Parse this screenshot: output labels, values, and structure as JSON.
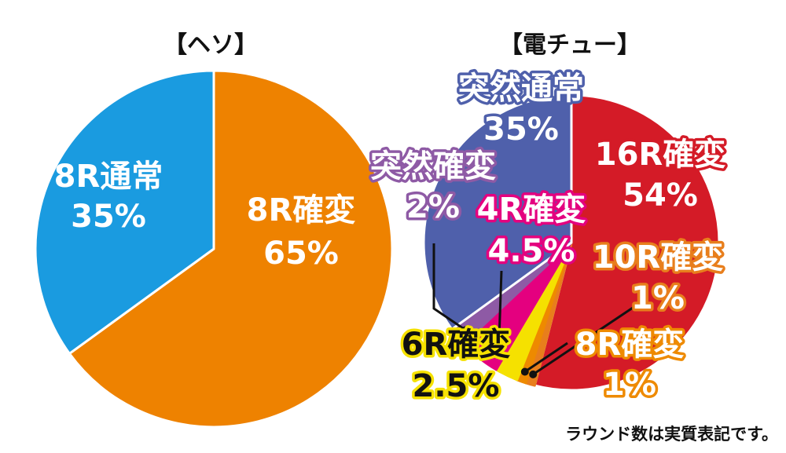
{
  "footnote": "ラウンド数は実質表記です。",
  "chart_data": [
    {
      "type": "pie",
      "title": "【ヘソ】",
      "slices": [
        {
          "label": "8R確変",
          "value": 65,
          "display": "65%",
          "color": "#ee8200",
          "outline": "#ffffff",
          "text": "#ffffff"
        },
        {
          "label": "8R通常",
          "value": 35,
          "display": "35%",
          "color": "#1a9be0",
          "outline": "#ffffff",
          "text": "#ffffff"
        }
      ]
    },
    {
      "type": "pie",
      "title": "【電チュー】",
      "slices": [
        {
          "label": "16R確変",
          "value": 54,
          "display": "54%",
          "color": "#d41b27",
          "outline": "#ffffff",
          "text": "#ffffff"
        },
        {
          "label": "10R確変",
          "value": 1,
          "display": "1%",
          "color": "#e87e1c",
          "outline": "#e87e1c",
          "text": "#ffffff"
        },
        {
          "label": "8R確変",
          "value": 1,
          "display": "1%",
          "color": "#ee8a00",
          "outline": "#ee8a00",
          "text": "#ffffff"
        },
        {
          "label": "6R確変",
          "value": 2.5,
          "display": "2.5%",
          "color": "#f5e100",
          "outline": "#f5e100",
          "text": "#111111"
        },
        {
          "label": "4R確変",
          "value": 4.5,
          "display": "4.5%",
          "color": "#e4007f",
          "outline": "#e4007f",
          "text": "#ffffff"
        },
        {
          "label": "突然確変",
          "value": 2,
          "display": "2%",
          "color": "#8e5aa5",
          "outline": "#8e5aa5",
          "text": "#ffffff"
        },
        {
          "label": "突然通常",
          "value": 35,
          "display": "35%",
          "color": "#4f60ab",
          "outline": "#ffffff",
          "text": "#ffffff"
        }
      ]
    }
  ]
}
